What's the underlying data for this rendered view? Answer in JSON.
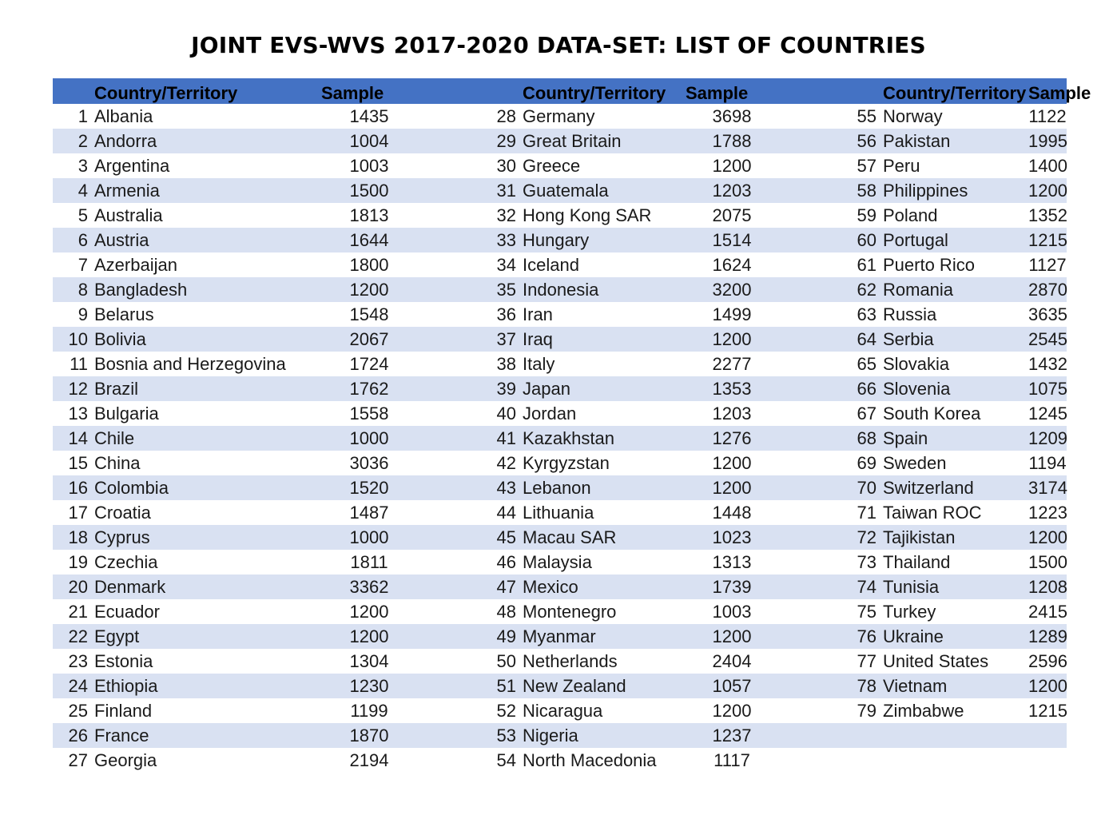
{
  "title": "JOINT EVS-WVS 2017-2020 DATA-SET: LIST OF COUNTRIES",
  "columns": {
    "country": "Country/Territory",
    "sample": "Sample"
  },
  "countries": [
    {
      "no": "1",
      "name": "Albania",
      "sample": "1435"
    },
    {
      "no": "2",
      "name": "Andorra",
      "sample": "1004"
    },
    {
      "no": "3",
      "name": "Argentina",
      "sample": "1003"
    },
    {
      "no": "4",
      "name": "Armenia",
      "sample": "1500"
    },
    {
      "no": "5",
      "name": "Australia",
      "sample": "1813"
    },
    {
      "no": "6",
      "name": "Austria",
      "sample": "1644"
    },
    {
      "no": "7",
      "name": "Azerbaijan",
      "sample": "1800"
    },
    {
      "no": "8",
      "name": "Bangladesh",
      "sample": "1200"
    },
    {
      "no": "9",
      "name": "Belarus",
      "sample": "1548"
    },
    {
      "no": "10",
      "name": "Bolivia",
      "sample": "2067"
    },
    {
      "no": "11",
      "name": "Bosnia and Herzegovina",
      "sample": "1724"
    },
    {
      "no": "12",
      "name": "Brazil",
      "sample": "1762"
    },
    {
      "no": "13",
      "name": "Bulgaria",
      "sample": "1558"
    },
    {
      "no": "14",
      "name": "Chile",
      "sample": "1000"
    },
    {
      "no": "15",
      "name": "China",
      "sample": "3036"
    },
    {
      "no": "16",
      "name": "Colombia",
      "sample": "1520"
    },
    {
      "no": "17",
      "name": "Croatia",
      "sample": "1487"
    },
    {
      "no": "18",
      "name": "Cyprus",
      "sample": "1000"
    },
    {
      "no": "19",
      "name": "Czechia",
      "sample": "1811"
    },
    {
      "no": "20",
      "name": "Denmark",
      "sample": "3362"
    },
    {
      "no": "21",
      "name": "Ecuador",
      "sample": "1200"
    },
    {
      "no": "22",
      "name": "Egypt",
      "sample": "1200"
    },
    {
      "no": "23",
      "name": "Estonia",
      "sample": "1304"
    },
    {
      "no": "24",
      "name": "Ethiopia",
      "sample": "1230"
    },
    {
      "no": "25",
      "name": "Finland",
      "sample": "1199"
    },
    {
      "no": "26",
      "name": "France",
      "sample": "1870"
    },
    {
      "no": "27",
      "name": "Georgia",
      "sample": "2194"
    },
    {
      "no": "28",
      "name": "Germany",
      "sample": "3698"
    },
    {
      "no": "29",
      "name": "Great Britain",
      "sample": "1788"
    },
    {
      "no": "30",
      "name": "Greece",
      "sample": "1200"
    },
    {
      "no": "31",
      "name": "Guatemala",
      "sample": "1203"
    },
    {
      "no": "32",
      "name": "Hong Kong SAR",
      "sample": "2075"
    },
    {
      "no": "33",
      "name": "Hungary",
      "sample": "1514"
    },
    {
      "no": "34",
      "name": "Iceland",
      "sample": "1624"
    },
    {
      "no": "35",
      "name": "Indonesia",
      "sample": "3200"
    },
    {
      "no": "36",
      "name": "Iran",
      "sample": "1499"
    },
    {
      "no": "37",
      "name": "Iraq",
      "sample": "1200"
    },
    {
      "no": "38",
      "name": "Italy",
      "sample": "2277"
    },
    {
      "no": "39",
      "name": "Japan",
      "sample": "1353"
    },
    {
      "no": "40",
      "name": "Jordan",
      "sample": "1203"
    },
    {
      "no": "41",
      "name": "Kazakhstan",
      "sample": "1276"
    },
    {
      "no": "42",
      "name": "Kyrgyzstan",
      "sample": "1200"
    },
    {
      "no": "43",
      "name": "Lebanon",
      "sample": "1200"
    },
    {
      "no": "44",
      "name": "Lithuania",
      "sample": "1448"
    },
    {
      "no": "45",
      "name": "Macau SAR",
      "sample": "1023"
    },
    {
      "no": "46",
      "name": "Malaysia",
      "sample": "1313"
    },
    {
      "no": "47",
      "name": "Mexico",
      "sample": "1739"
    },
    {
      "no": "48",
      "name": "Montenegro",
      "sample": "1003"
    },
    {
      "no": "49",
      "name": "Myanmar",
      "sample": "1200"
    },
    {
      "no": "50",
      "name": "Netherlands",
      "sample": "2404"
    },
    {
      "no": "51",
      "name": "New Zealand",
      "sample": "1057"
    },
    {
      "no": "52",
      "name": "Nicaragua",
      "sample": "1200"
    },
    {
      "no": "53",
      "name": "Nigeria",
      "sample": "1237"
    },
    {
      "no": "54",
      "name": "North Macedonia",
      "sample": "1117"
    },
    {
      "no": "55",
      "name": "Norway",
      "sample": "1122"
    },
    {
      "no": "56",
      "name": "Pakistan",
      "sample": "1995"
    },
    {
      "no": "57",
      "name": "Peru",
      "sample": "1400"
    },
    {
      "no": "58",
      "name": "Philippines",
      "sample": "1200"
    },
    {
      "no": "59",
      "name": "Poland",
      "sample": "1352"
    },
    {
      "no": "60",
      "name": "Portugal",
      "sample": "1215"
    },
    {
      "no": "61",
      "name": "Puerto Rico",
      "sample": "1127"
    },
    {
      "no": "62",
      "name": "Romania",
      "sample": "2870"
    },
    {
      "no": "63",
      "name": "Russia",
      "sample": "3635"
    },
    {
      "no": "64",
      "name": "Serbia",
      "sample": "2545"
    },
    {
      "no": "65",
      "name": "Slovakia",
      "sample": "1432"
    },
    {
      "no": "66",
      "name": "Slovenia",
      "sample": "1075"
    },
    {
      "no": "67",
      "name": "South Korea",
      "sample": "1245"
    },
    {
      "no": "68",
      "name": "Spain",
      "sample": "1209"
    },
    {
      "no": "69",
      "name": "Sweden",
      "sample": "1194"
    },
    {
      "no": "70",
      "name": "Switzerland",
      "sample": "3174"
    },
    {
      "no": "71",
      "name": "Taiwan ROC",
      "sample": "1223"
    },
    {
      "no": "72",
      "name": "Tajikistan",
      "sample": "1200"
    },
    {
      "no": "73",
      "name": "Thailand",
      "sample": "1500"
    },
    {
      "no": "74",
      "name": "Tunisia",
      "sample": "1208"
    },
    {
      "no": "75",
      "name": "Turkey",
      "sample": "2415"
    },
    {
      "no": "76",
      "name": "Ukraine",
      "sample": "1289"
    },
    {
      "no": "77",
      "name": "United States",
      "sample": "2596"
    },
    {
      "no": "78",
      "name": "Vietnam",
      "sample": "1200"
    },
    {
      "no": "79",
      "name": "Zimbabwe",
      "sample": "1215"
    }
  ]
}
